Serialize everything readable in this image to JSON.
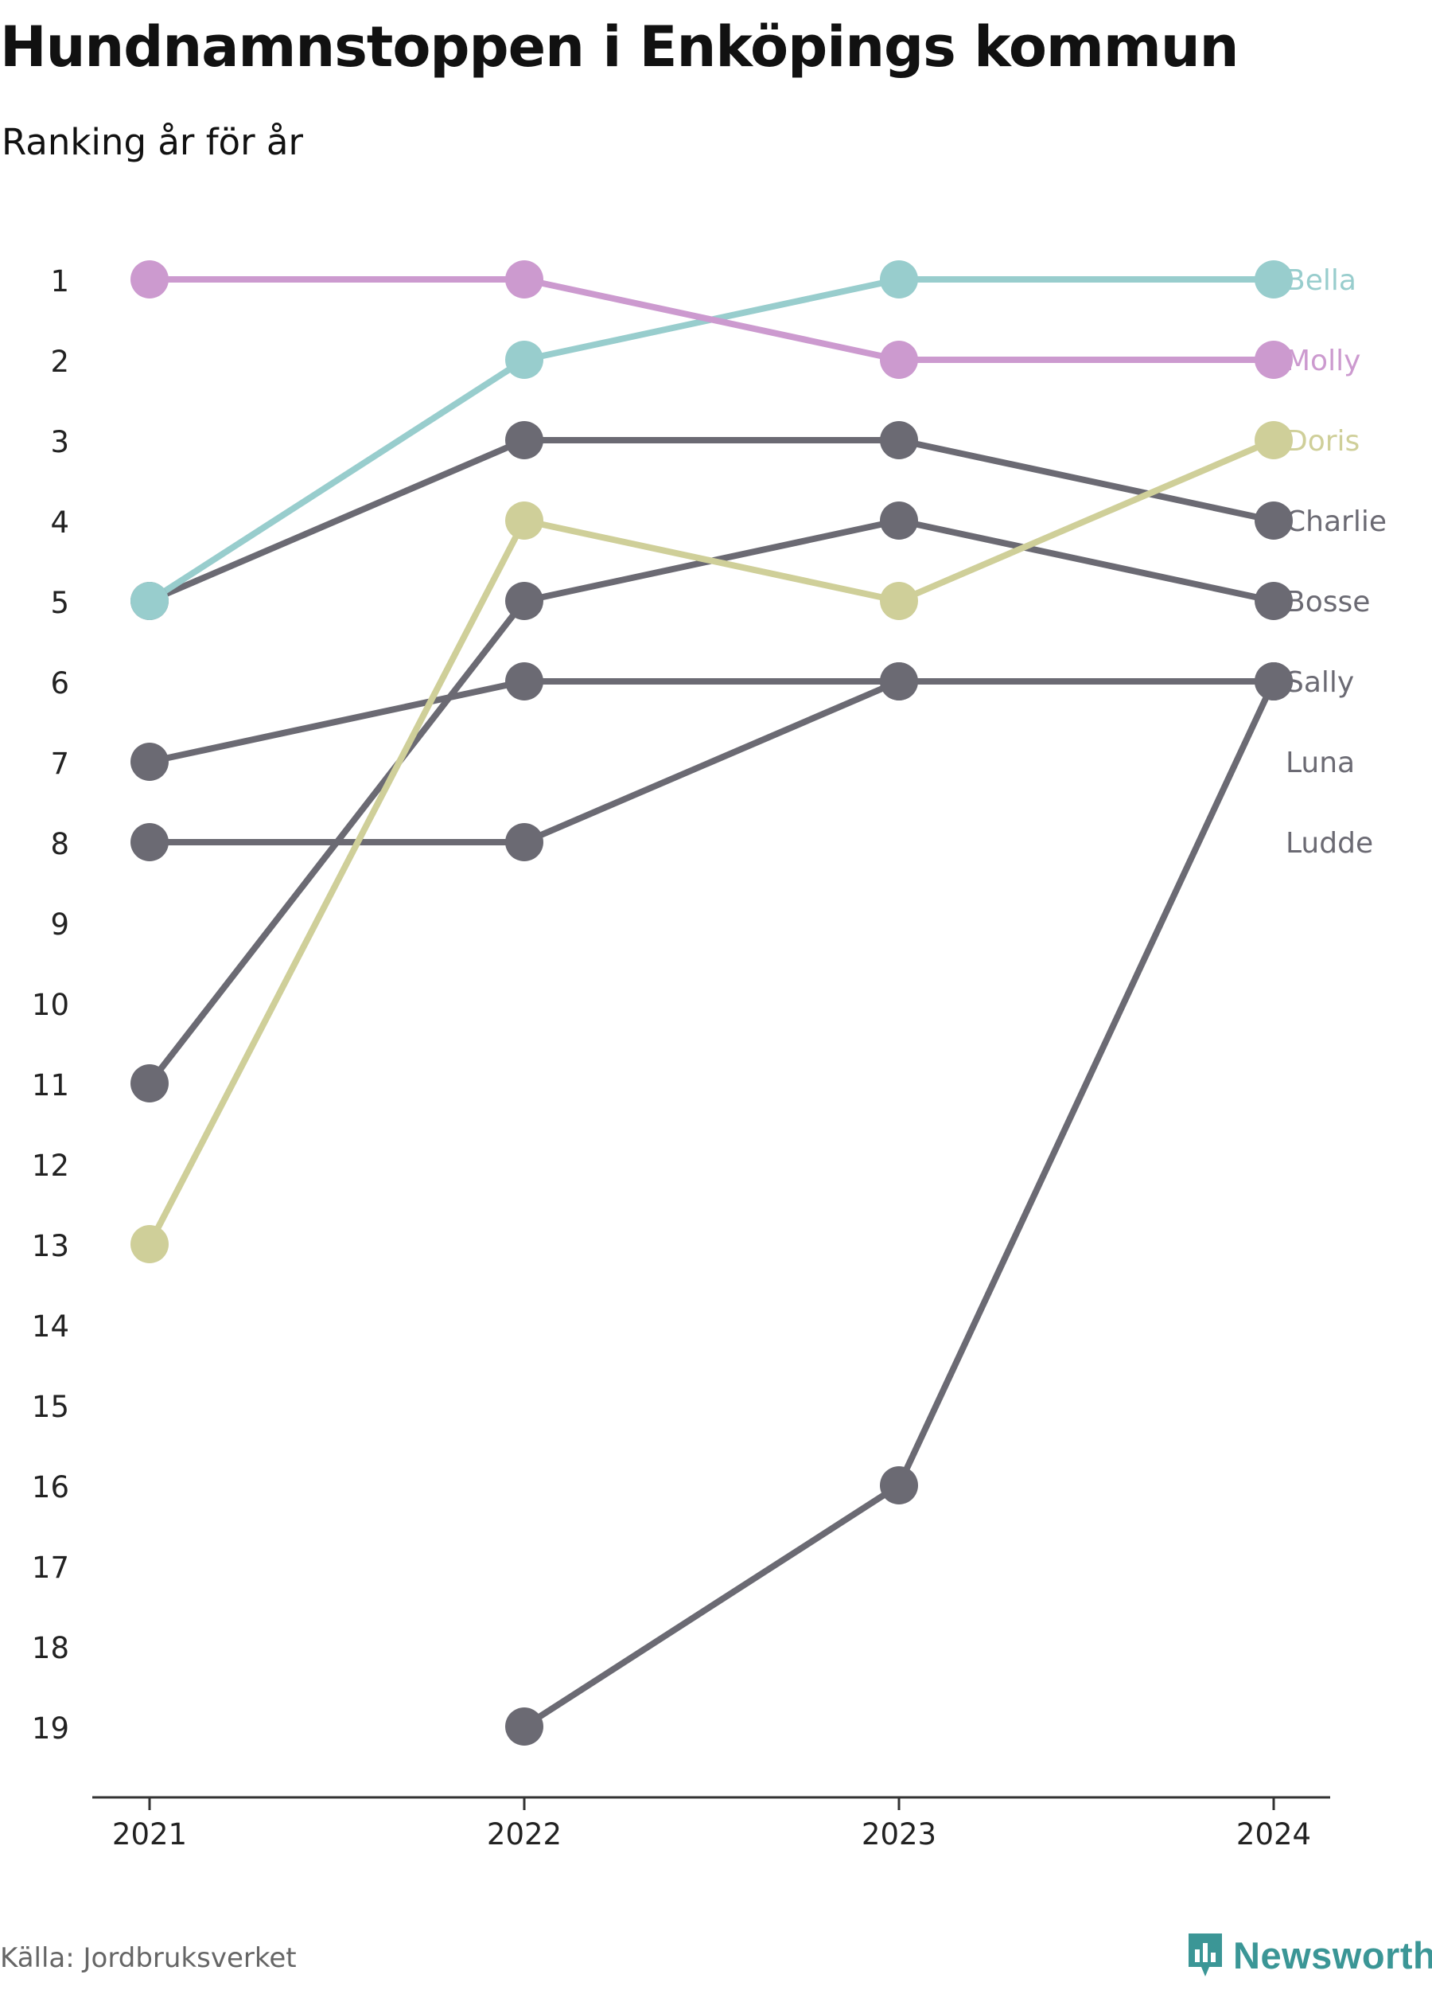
{
  "title": "Hundnamnstoppen i Enköpings kommun",
  "subtitle": "Ranking år för år",
  "source": "Källa: Jordbruksverket",
  "brand": {
    "name": "Newsworthy",
    "icon": "newsworthy-logo-icon",
    "color": "#3b9696"
  },
  "chart_data": {
    "type": "line",
    "title": "Hundnamnstoppen i Enköpings kommun",
    "subtitle": "Ranking år för år",
    "x": [
      "2021",
      "2022",
      "2023",
      "2024"
    ],
    "y_ticks": [
      "1",
      "2",
      "3",
      "4",
      "5",
      "6",
      "7",
      "8",
      "9",
      "10",
      "11",
      "12",
      "13",
      "14",
      "15",
      "16",
      "17",
      "18",
      "19"
    ],
    "ylim": [
      1,
      19
    ],
    "y_reversed": true,
    "grid": false,
    "legend": "direct labels at right end of lines",
    "series": [
      {
        "name": "Bella",
        "values": [
          5,
          2,
          1,
          1
        ],
        "color": "#98cdcd"
      },
      {
        "name": "Molly",
        "values": [
          1,
          1,
          2,
          2
        ],
        "color": "#cc9acf"
      },
      {
        "name": "Doris",
        "values": [
          13,
          4,
          5,
          3
        ],
        "color": "#cfcf99"
      },
      {
        "name": "Charlie",
        "values": [
          5,
          3,
          3,
          4
        ],
        "color": "#6b6a73"
      },
      {
        "name": "Bosse",
        "values": [
          11,
          5,
          4,
          5
        ],
        "color": "#6b6a73"
      },
      {
        "name": "Sally",
        "values": [
          null,
          19,
          16,
          6
        ],
        "color": "#6b6a73"
      },
      {
        "name": "Luna",
        "values": [
          7,
          6,
          6,
          6
        ],
        "color": "#6b6a73"
      },
      {
        "name": "Ludde",
        "values": [
          8,
          8,
          6,
          6
        ],
        "color": "#6b6a73"
      }
    ]
  }
}
